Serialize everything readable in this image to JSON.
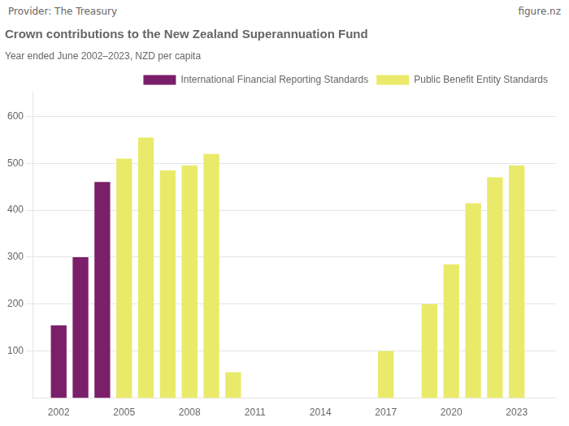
{
  "chart_data": {
    "type": "bar",
    "title": "Crown contributions to the New Zealand Superannuation Fund",
    "subtitle": "Year ended June 2002–2023, NZD per capita",
    "annotations": [
      "Provider: The Treasury",
      "figure.nz"
    ],
    "x": [
      2002,
      2003,
      2004,
      2005,
      2006,
      2007,
      2008,
      2009,
      2010,
      2017,
      2019,
      2020,
      2021,
      2022,
      2023
    ],
    "series": [
      {
        "name": "International Financial Reporting Standards",
        "color": "#7B1F6A",
        "values": [
          155,
          300,
          460,
          null,
          null,
          null,
          null,
          null,
          null,
          null,
          null,
          null,
          null,
          null,
          null
        ]
      },
      {
        "name": "Public Benefit Entity Standards",
        "color": "#EAEA6A",
        "values": [
          null,
          null,
          null,
          510,
          555,
          485,
          495,
          520,
          55,
          100,
          200,
          285,
          415,
          470,
          495
        ]
      }
    ],
    "xlim": [
      2000.8,
      2024.8
    ],
    "xticks": [
      2002,
      2005,
      2008,
      2011,
      2014,
      2017,
      2020,
      2023
    ],
    "ylim": [
      0,
      650
    ],
    "yticks": [
      100,
      200,
      300,
      400,
      500,
      600
    ],
    "grid": true,
    "legend": "upper right"
  }
}
